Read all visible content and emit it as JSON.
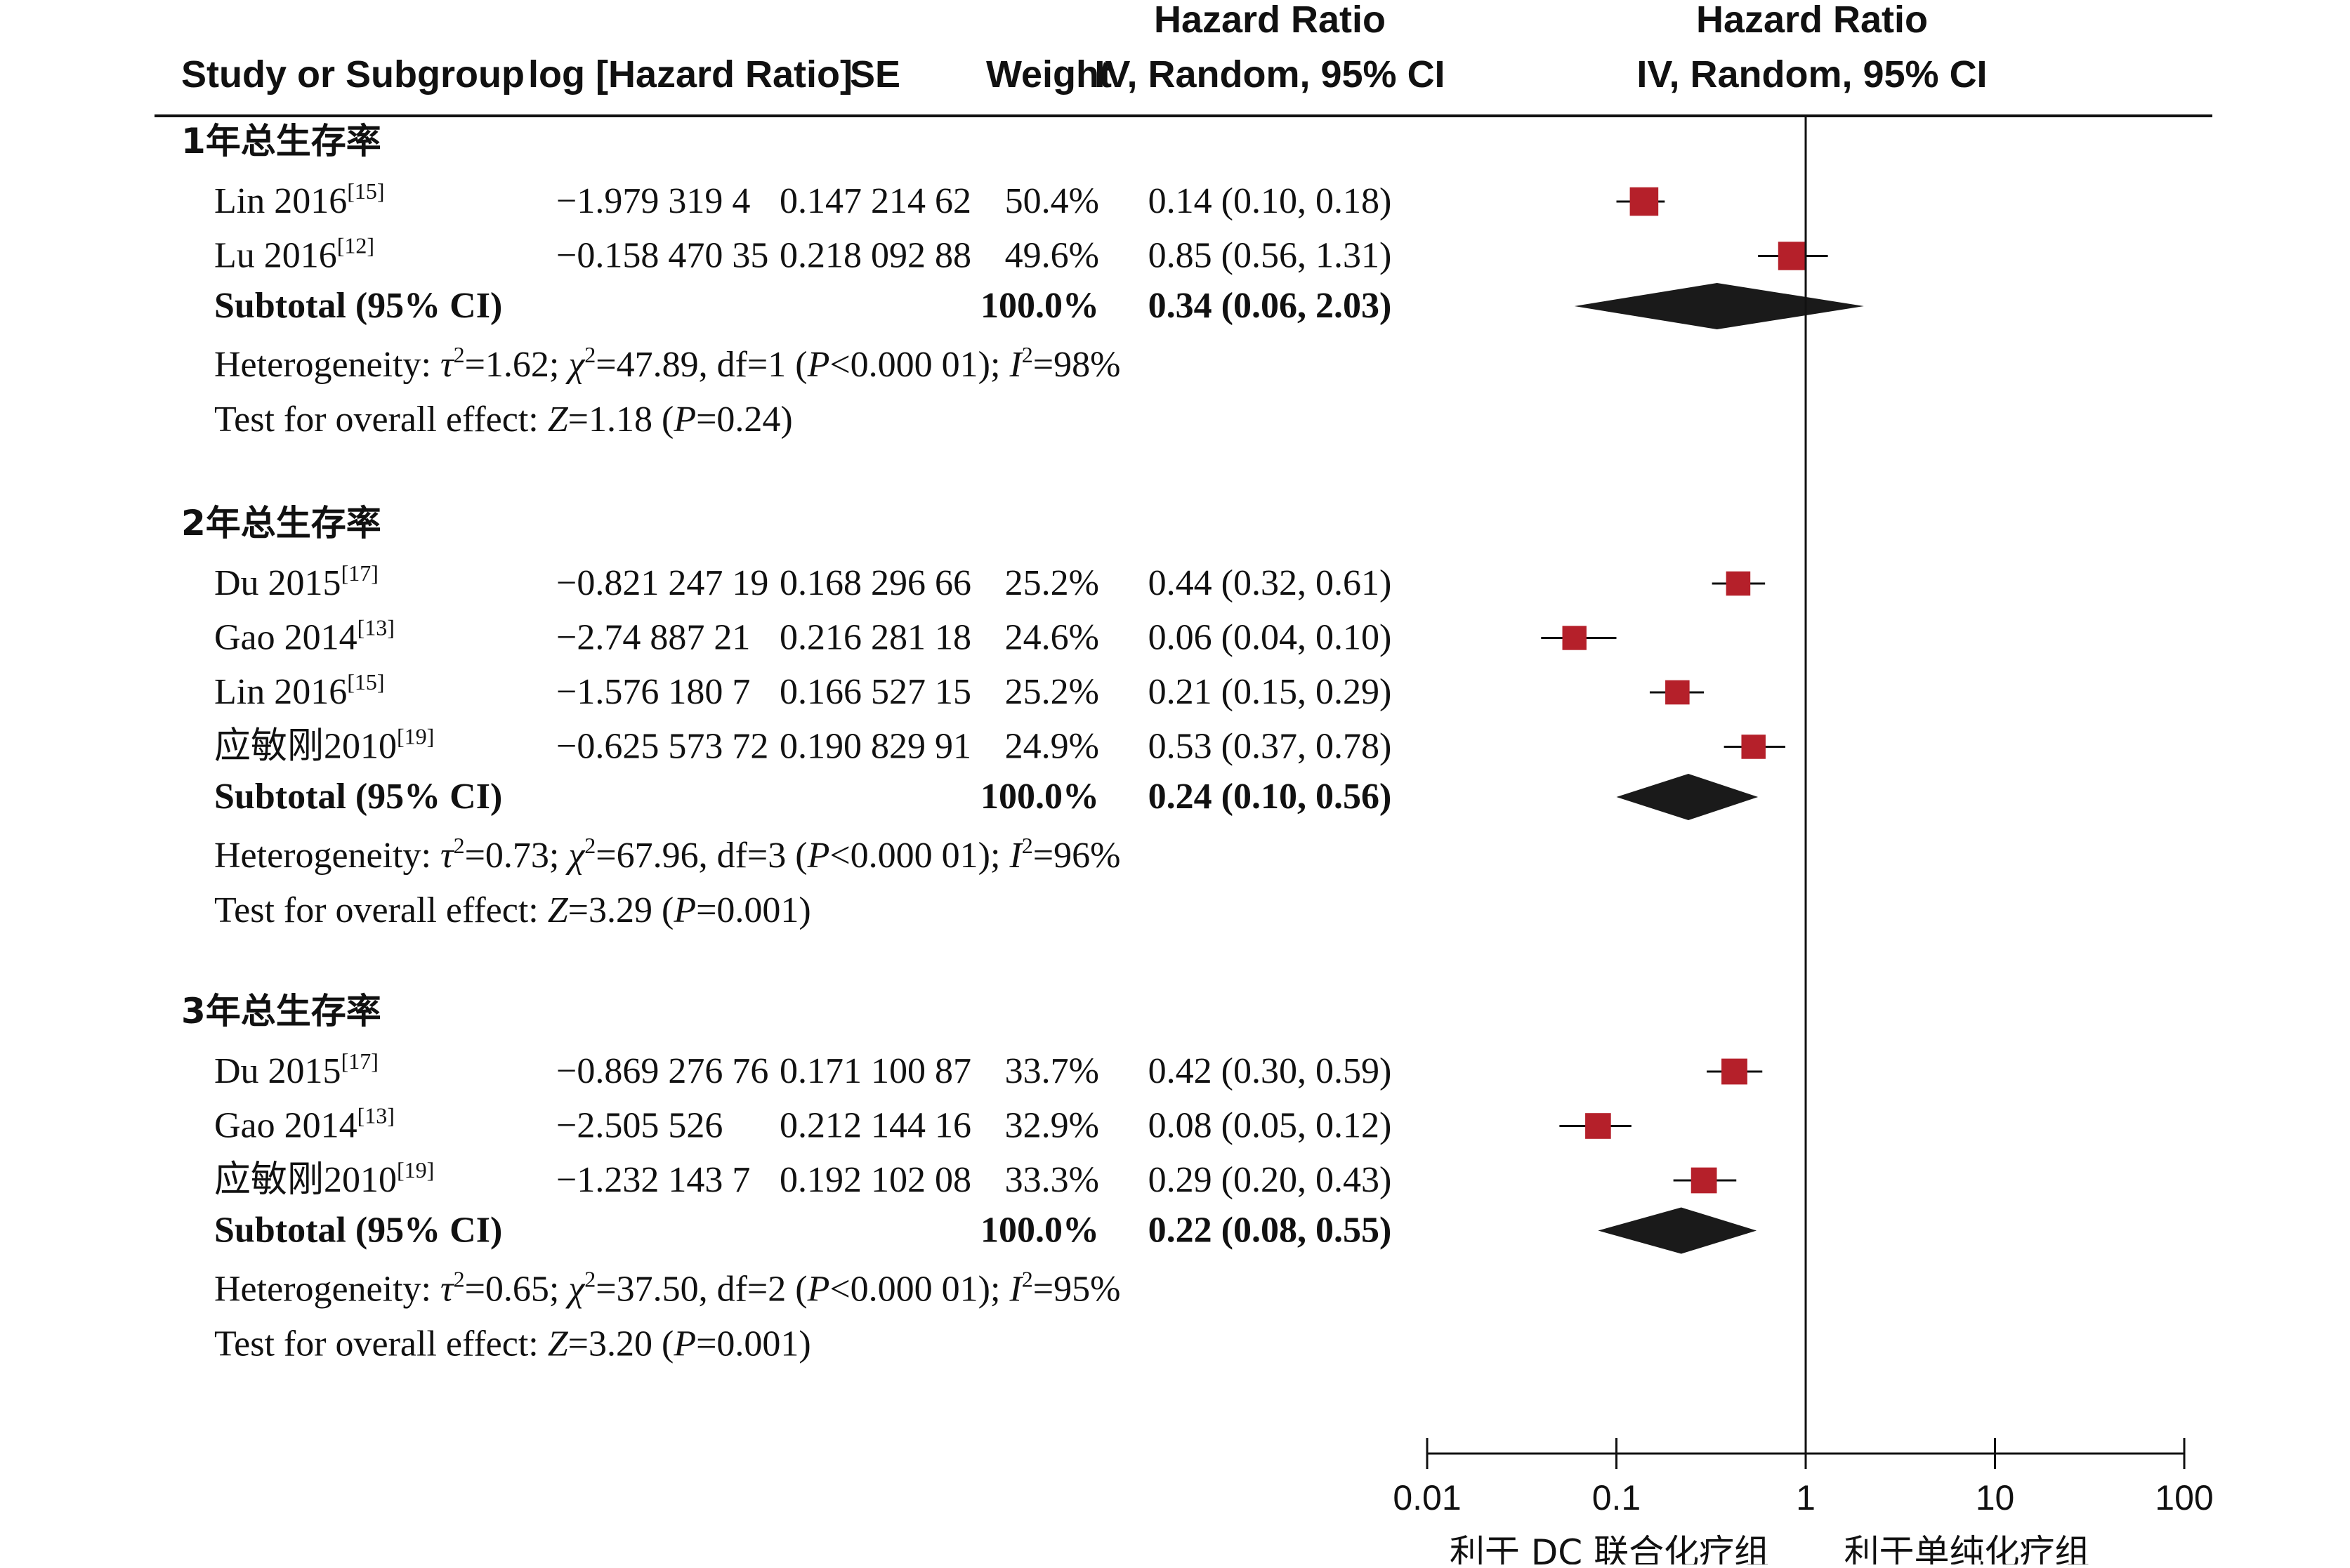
{
  "header": {
    "study": "Study or Subgroup",
    "loghr": "log [Hazard Ratio]",
    "se": "SE",
    "weight": "Weight",
    "hr_table_line1": "Hazard Ratio",
    "hr_table_line2": "IV, Random, 95% CI",
    "hr_plot_line1": "Hazard Ratio",
    "hr_plot_line2": "IV, Random, 95% CI"
  },
  "chart_data": {
    "type": "forest",
    "xscale": "log",
    "xlim": [
      0.01,
      100
    ],
    "xticks": [
      "0.01",
      "0.1",
      "1",
      "10",
      "100"
    ],
    "xlabel_left": "利于 DC 联合化疗组",
    "xlabel_right": "利于单纯化疗组",
    "colors": {
      "marker": "#b5202a",
      "diamond": "#1a1a1a",
      "line": "#111111"
    },
    "groups": [
      {
        "name": "1年总生存率",
        "studies": [
          {
            "study": "Lin 2016",
            "ref": "[15]",
            "loghr": "−1.979 319 4",
            "se": "0.147 214 62",
            "weight": "50.4%",
            "ci_text": "0.14 (0.10, 0.18)",
            "hr": 0.14,
            "lo": 0.1,
            "hi": 0.18,
            "w": 50.4
          },
          {
            "study": "Lu 2016",
            "ref": "[12]",
            "loghr": "−0.158 470 35",
            "se": "0.218 092 88",
            "weight": "49.6%",
            "ci_text": "0.85 (0.56, 1.31)",
            "hr": 0.85,
            "lo": 0.56,
            "hi": 1.31,
            "w": 49.6
          }
        ],
        "subtotal": {
          "label": "Subtotal (95% CI)",
          "weight": "100.0%",
          "ci_text": "0.34 (0.06, 2.03)",
          "hr": 0.34,
          "lo": 0.06,
          "hi": 2.03
        },
        "heterogeneity": {
          "prefix": "Heterogeneity: ",
          "tau2": "1.62",
          "chi2": "47.89",
          "df": "1",
          "p": "<0.000 01",
          "i2": "98%"
        },
        "overall": {
          "prefix": "Test for overall effect: ",
          "z": "1.18",
          "p": "=0.24"
        }
      },
      {
        "name": "2年总生存率",
        "studies": [
          {
            "study": "Du 2015",
            "ref": "[17]",
            "loghr": "−0.821 247 19",
            "se": "0.168 296 66",
            "weight": "25.2%",
            "ci_text": "0.44 (0.32, 0.61)",
            "hr": 0.44,
            "lo": 0.32,
            "hi": 0.61,
            "w": 25.2
          },
          {
            "study": "Gao 2014",
            "ref": "[13]",
            "loghr": "−2.74 887 21",
            "se": "0.216 281 18",
            "weight": "24.6%",
            "ci_text": "0.06 (0.04, 0.10)",
            "hr": 0.06,
            "lo": 0.04,
            "hi": 0.1,
            "w": 24.6
          },
          {
            "study": "Lin 2016",
            "ref": "[15]",
            "loghr": "−1.576 180 7",
            "se": "0.166 527 15",
            "weight": "25.2%",
            "ci_text": "0.21 (0.15, 0.29)",
            "hr": 0.21,
            "lo": 0.15,
            "hi": 0.29,
            "w": 25.2
          },
          {
            "study": "应敏刚2010",
            "ref": "[19]",
            "loghr": "−0.625 573 72",
            "se": "0.190 829 91",
            "weight": "24.9%",
            "ci_text": "0.53 (0.37, 0.78)",
            "hr": 0.53,
            "lo": 0.37,
            "hi": 0.78,
            "w": 24.9
          }
        ],
        "subtotal": {
          "label": "Subtotal (95% CI)",
          "weight": "100.0%",
          "ci_text": "0.24 (0.10, 0.56)",
          "hr": 0.24,
          "lo": 0.1,
          "hi": 0.56
        },
        "heterogeneity": {
          "prefix": "Heterogeneity: ",
          "tau2": "0.73",
          "chi2": "67.96",
          "df": "3",
          "p": "<0.000 01",
          "i2": "96%"
        },
        "overall": {
          "prefix": "Test for overall effect: ",
          "z": "3.29",
          "p": "=0.001"
        }
      },
      {
        "name": "3年总生存率",
        "studies": [
          {
            "study": "Du 2015",
            "ref": "[17]",
            "loghr": "−0.869 276 76",
            "se": "0.171 100 87",
            "weight": "33.7%",
            "ci_text": "0.42 (0.30, 0.59)",
            "hr": 0.42,
            "lo": 0.3,
            "hi": 0.59,
            "w": 33.7
          },
          {
            "study": "Gao 2014",
            "ref": "[13]",
            "loghr": "−2.505 526",
            "se": "0.212 144 16",
            "weight": "32.9%",
            "ci_text": "0.08 (0.05, 0.12)",
            "hr": 0.08,
            "lo": 0.05,
            "hi": 0.12,
            "w": 32.9
          },
          {
            "study": "应敏刚2010",
            "ref": "[19]",
            "loghr": "−1.232 143 7",
            "se": "0.192 102 08",
            "weight": "33.3%",
            "ci_text": "0.29 (0.20, 0.43)",
            "hr": 0.29,
            "lo": 0.2,
            "hi": 0.43,
            "w": 33.3
          }
        ],
        "subtotal": {
          "label": "Subtotal (95% CI)",
          "weight": "100.0%",
          "ci_text": "0.22 (0.08, 0.55)",
          "hr": 0.22,
          "lo": 0.08,
          "hi": 0.55
        },
        "heterogeneity": {
          "prefix": "Heterogeneity: ",
          "tau2": "0.65",
          "chi2": "37.50",
          "df": "2",
          "p": "<0.000 01",
          "i2": "95%"
        },
        "overall": {
          "prefix": "Test for overall effect: ",
          "z": "3.20",
          "p": "=0.001"
        }
      }
    ]
  }
}
